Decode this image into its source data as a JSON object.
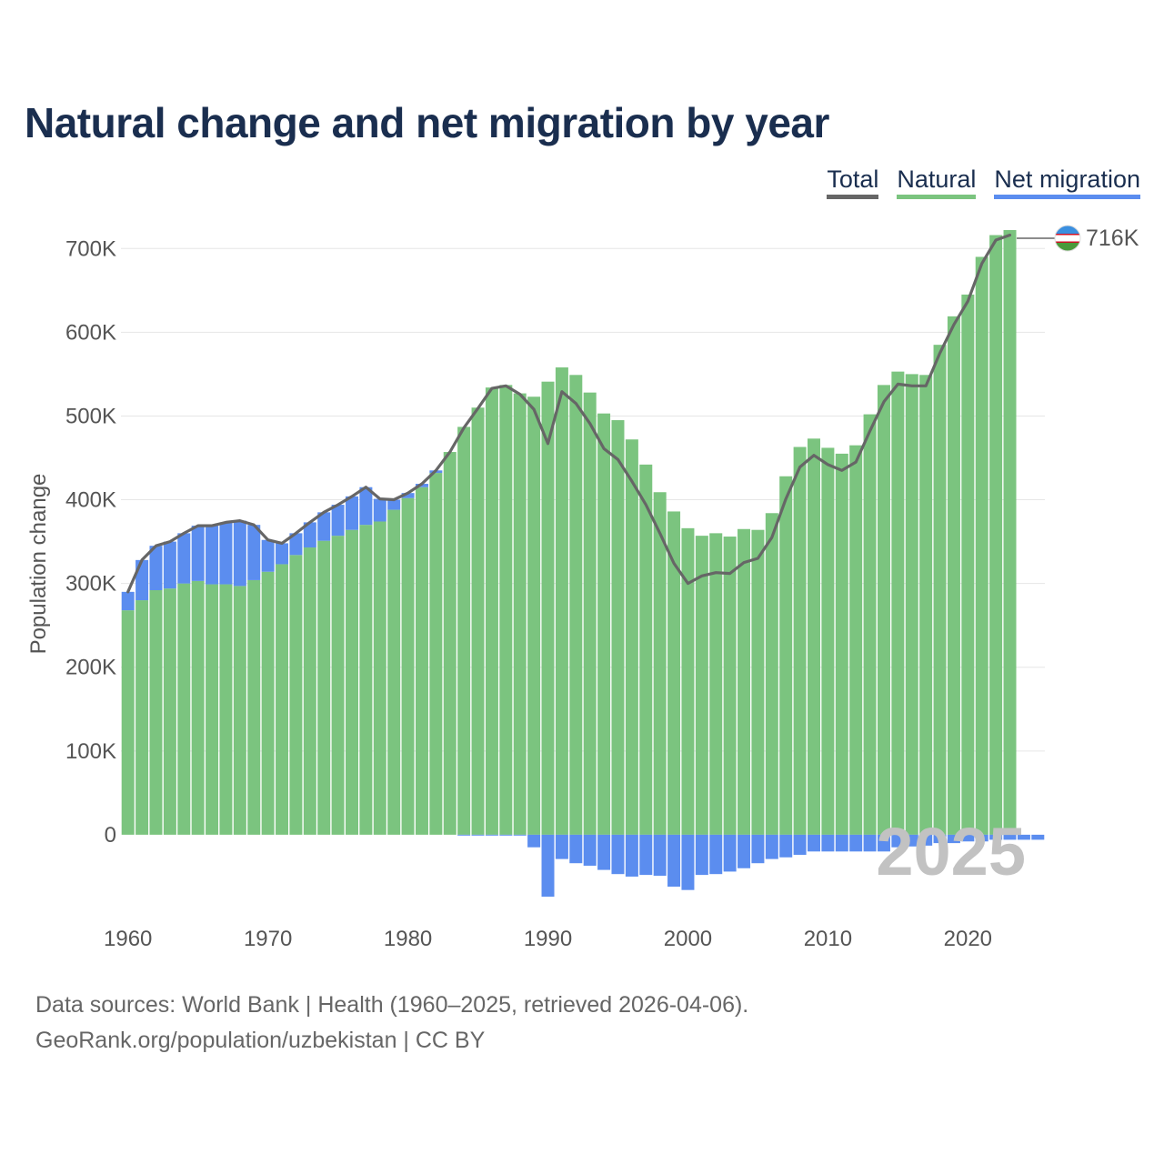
{
  "title": "Natural change and net migration by year",
  "legend": [
    {
      "key": "total",
      "label": "Total",
      "color": "#666666"
    },
    {
      "key": "natural",
      "label": "Natural",
      "color": "#7bc47f"
    },
    {
      "key": "migration",
      "label": "Net migration",
      "color": "#5b8def"
    }
  ],
  "footer": {
    "source": "Data sources: World Bank | Health (1960–2025, retrieved 2026-04-06).",
    "credit": "GeoRank.org/population/uzbekistan | CC BY"
  },
  "end_label": "716K",
  "year_watermark": "2025",
  "chart_data": {
    "type": "bar",
    "stacked": true,
    "title": "Natural change and net migration by year",
    "xlabel": "",
    "ylabel": "Population change",
    "xlim": [
      1959.5,
      2025.5
    ],
    "ylim": [
      -100000,
      760000
    ],
    "x_ticks": [
      1960,
      1970,
      1980,
      1990,
      2000,
      2010,
      2020
    ],
    "y_ticks": [
      0,
      100000,
      200000,
      300000,
      400000,
      500000,
      600000,
      700000
    ],
    "y_tick_labels": [
      "0",
      "100K",
      "200K",
      "300K",
      "400K",
      "500K",
      "600K",
      "700K"
    ],
    "x_tick_labels": [
      "1960",
      "1970",
      "1980",
      "1990",
      "2000",
      "2010",
      "2020"
    ],
    "years": [
      1960,
      1961,
      1962,
      1963,
      1964,
      1965,
      1966,
      1967,
      1968,
      1969,
      1970,
      1971,
      1972,
      1973,
      1974,
      1975,
      1976,
      1977,
      1978,
      1979,
      1980,
      1981,
      1982,
      1983,
      1984,
      1985,
      1986,
      1987,
      1988,
      1989,
      1990,
      1991,
      1992,
      1993,
      1994,
      1995,
      1996,
      1997,
      1998,
      1999,
      2000,
      2001,
      2002,
      2003,
      2004,
      2005,
      2006,
      2007,
      2008,
      2009,
      2010,
      2011,
      2012,
      2013,
      2014,
      2015,
      2016,
      2017,
      2018,
      2019,
      2020,
      2021,
      2022,
      2023,
      2024,
      2025
    ],
    "series": [
      {
        "name": "Natural",
        "values": [
          268000,
          280000,
          292000,
          294000,
          300000,
          303000,
          299000,
          299000,
          297000,
          304000,
          314000,
          323000,
          334000,
          343000,
          351000,
          357000,
          364000,
          370000,
          374000,
          388000,
          402000,
          415000,
          432000,
          457000,
          487000,
          510000,
          534000,
          537000,
          527000,
          523000,
          541000,
          558000,
          549000,
          528000,
          503000,
          495000,
          472000,
          442000,
          409000,
          386000,
          366000,
          357000,
          360000,
          356000,
          365000,
          364000,
          384000,
          428000,
          463000,
          473000,
          462000,
          455000,
          465000,
          502000,
          537000,
          553000,
          550000,
          549000,
          585000,
          619000,
          645000,
          690000,
          716000,
          722000,
          null,
          null
        ]
      },
      {
        "name": "Net migration",
        "values": [
          22000,
          48000,
          53000,
          56000,
          60000,
          66000,
          70000,
          74000,
          78000,
          66000,
          38000,
          25000,
          26000,
          30000,
          34000,
          37000,
          40000,
          45000,
          27000,
          12000,
          6000,
          4000,
          3000,
          0,
          -1000,
          -1000,
          -1000,
          -1000,
          -1000,
          -15000,
          -74000,
          -29000,
          -34000,
          -37000,
          -42000,
          -47000,
          -50000,
          -48000,
          -49000,
          -62000,
          -66000,
          -48000,
          -47000,
          -44000,
          -40000,
          -34000,
          -29000,
          -27000,
          -24000,
          -20000,
          -20000,
          -20000,
          -20000,
          -20000,
          -20000,
          -15000,
          -14000,
          -13000,
          -10000,
          -10000,
          -8000,
          -8000,
          -6000,
          -6000,
          -6000,
          -6000
        ]
      },
      {
        "name": "Total",
        "values": [
          290000,
          328000,
          345000,
          350000,
          360000,
          369000,
          369000,
          373000,
          375000,
          370000,
          352000,
          348000,
          360000,
          373000,
          385000,
          394000,
          404000,
          415000,
          401000,
          400000,
          408000,
          419000,
          435000,
          457000,
          486000,
          509000,
          533000,
          536000,
          526000,
          508000,
          467000,
          529000,
          515000,
          491000,
          461000,
          448000,
          422000,
          394000,
          360000,
          324000,
          300000,
          309000,
          313000,
          312000,
          325000,
          330000,
          355000,
          401000,
          439000,
          453000,
          442000,
          435000,
          445000,
          482000,
          517000,
          538000,
          536000,
          536000,
          575000,
          609000,
          637000,
          682000,
          710000,
          716000,
          null,
          null
        ]
      }
    ]
  }
}
